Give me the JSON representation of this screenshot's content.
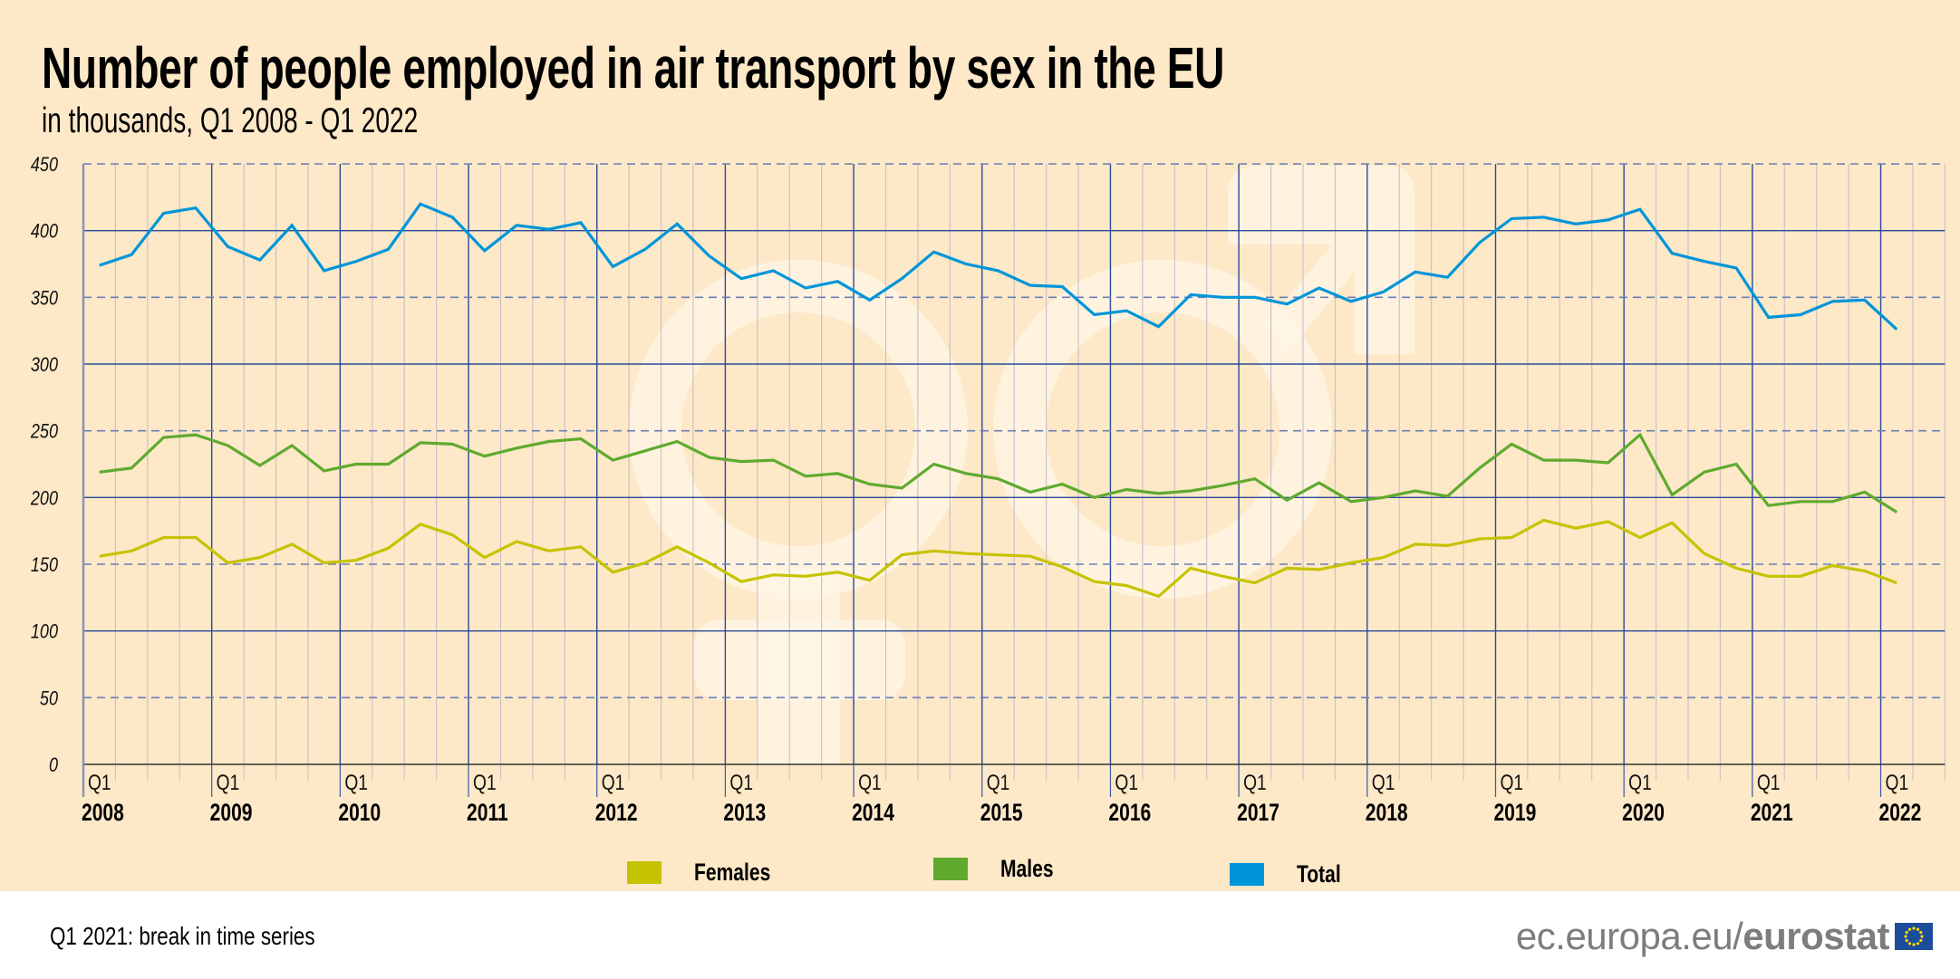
{
  "header": {
    "title": "Number of people employed in air transport by sex in the EU",
    "subtitle": "in thousands, Q1 2008 - Q1 2022"
  },
  "footer": {
    "note": "Q1 2021: break in time series",
    "brand_prefix": "ec.europa.eu/",
    "brand_name": "eurostat",
    "flag_icon": "eu-flag-icon"
  },
  "colors": {
    "background": "#fde8c8",
    "females": "#c6c300",
    "males": "#5faa2e",
    "total": "#0095d9",
    "grid": "#2a4a9a",
    "watermark": "#fff4e4"
  },
  "chart_data": {
    "type": "line",
    "title": "Number of people employed in air transport by sex in the EU",
    "subtitle": "in thousands, Q1 2008 - Q1 2022",
    "xlabel": "",
    "ylabel": "",
    "ylim": [
      0,
      450
    ],
    "yticks": [
      0,
      50,
      100,
      150,
      200,
      250,
      300,
      350,
      400,
      450
    ],
    "grid": true,
    "legend_position": "bottom",
    "x_tick_quarter_label": "Q1",
    "x_years": [
      "2008",
      "2009",
      "2010",
      "2011",
      "2012",
      "2013",
      "2014",
      "2015",
      "2016",
      "2017",
      "2018",
      "2019",
      "2020",
      "2021",
      "2022"
    ],
    "x": [
      "2008Q1",
      "2008Q2",
      "2008Q3",
      "2008Q4",
      "2009Q1",
      "2009Q2",
      "2009Q3",
      "2009Q4",
      "2010Q1",
      "2010Q2",
      "2010Q3",
      "2010Q4",
      "2011Q1",
      "2011Q2",
      "2011Q3",
      "2011Q4",
      "2012Q1",
      "2012Q2",
      "2012Q3",
      "2012Q4",
      "2013Q1",
      "2013Q2",
      "2013Q3",
      "2013Q4",
      "2014Q1",
      "2014Q2",
      "2014Q3",
      "2014Q4",
      "2015Q1",
      "2015Q2",
      "2015Q3",
      "2015Q4",
      "2016Q1",
      "2016Q2",
      "2016Q3",
      "2016Q4",
      "2017Q1",
      "2017Q2",
      "2017Q3",
      "2017Q4",
      "2018Q1",
      "2018Q2",
      "2018Q3",
      "2018Q4",
      "2019Q1",
      "2019Q2",
      "2019Q3",
      "2019Q4",
      "2020Q1",
      "2020Q2",
      "2020Q3",
      "2020Q4",
      "2021Q1",
      "2021Q2",
      "2021Q3",
      "2021Q4",
      "2022Q1"
    ],
    "series": [
      {
        "name": "Females",
        "color": "#c6c300",
        "values": [
          156,
          160,
          170,
          170,
          151,
          155,
          165,
          151,
          153,
          162,
          180,
          172,
          155,
          167,
          160,
          163,
          144,
          151,
          163,
          151,
          137,
          142,
          141,
          144,
          138,
          157,
          160,
          158,
          157,
          156,
          148,
          137,
          134,
          126,
          147,
          141,
          136,
          147,
          146,
          151,
          155,
          165,
          164,
          169,
          170,
          183,
          177,
          182,
          170,
          181,
          158,
          147,
          141,
          141,
          149,
          145,
          136
        ]
      },
      {
        "name": "Males",
        "color": "#5faa2e",
        "values": [
          219,
          222,
          245,
          247,
          239,
          224,
          239,
          220,
          225,
          225,
          241,
          240,
          231,
          237,
          242,
          244,
          228,
          235,
          242,
          230,
          227,
          228,
          216,
          218,
          210,
          207,
          225,
          218,
          214,
          204,
          210,
          200,
          206,
          203,
          205,
          209,
          214,
          198,
          211,
          197,
          200,
          205,
          201,
          222,
          240,
          228,
          228,
          226,
          247,
          202,
          219,
          225,
          194,
          197,
          197,
          204,
          189
        ]
      },
      {
        "name": "Total",
        "color": "#0095d9",
        "values": [
          374,
          382,
          413,
          417,
          388,
          378,
          404,
          370,
          377,
          386,
          420,
          410,
          385,
          404,
          401,
          406,
          373,
          386,
          405,
          381,
          364,
          370,
          357,
          362,
          348,
          364,
          384,
          375,
          370,
          359,
          358,
          337,
          340,
          328,
          352,
          350,
          350,
          345,
          357,
          347,
          354,
          369,
          365,
          391,
          409,
          410,
          405,
          408,
          416,
          383,
          377,
          372,
          335,
          337,
          347,
          348,
          326
        ]
      }
    ],
    "notes": [
      "Q1 2021: break in time series"
    ]
  }
}
